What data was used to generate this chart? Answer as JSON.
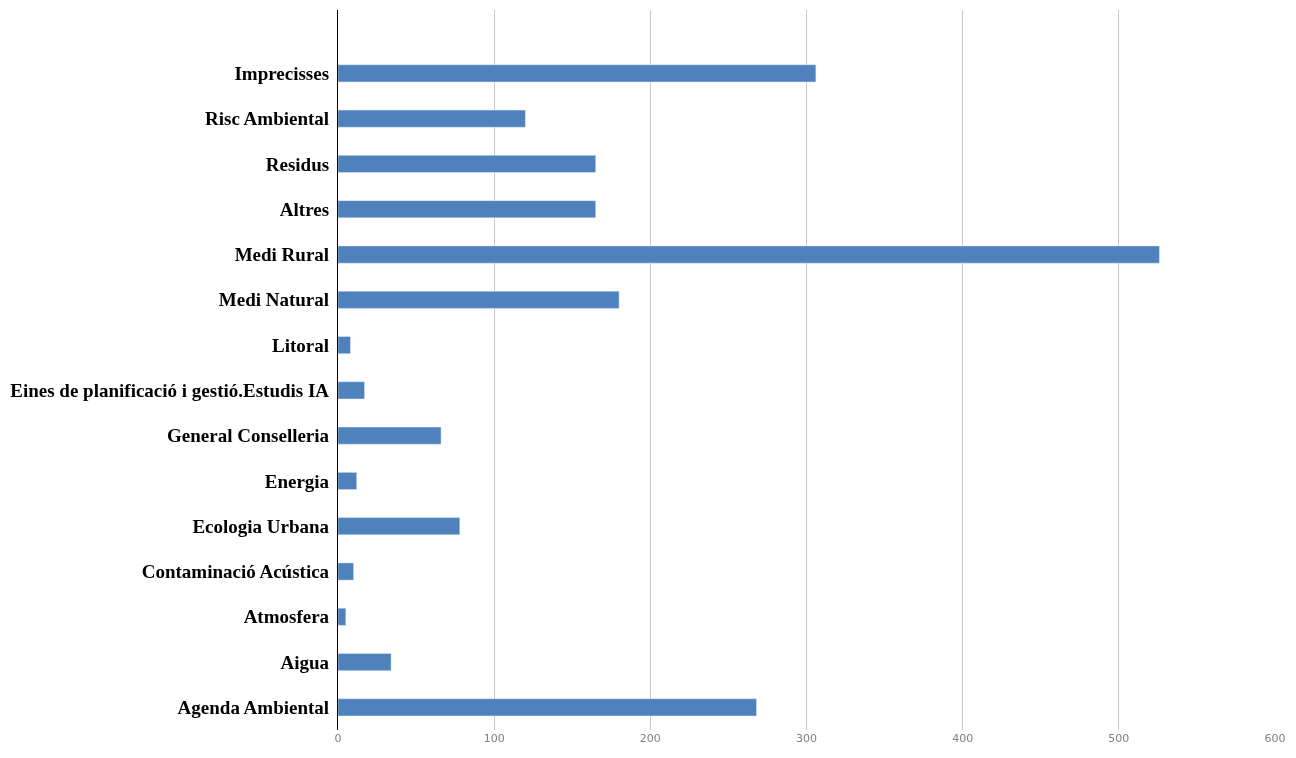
{
  "chart_data": {
    "type": "bar",
    "orientation": "horizontal",
    "categories": [
      "Imprecisses",
      "Risc Ambiental",
      "Residus",
      "Altres",
      "Medi Rural",
      "Medi Natural",
      "Litoral",
      "Eines de planificació i gestió.Estudis IA",
      "General Conselleria",
      "Energia",
      "Ecologia Urbana",
      "Contaminació Acústica",
      "Atmosfera",
      "Aigua",
      "Agenda Ambiental"
    ],
    "values": [
      306,
      120,
      165,
      165,
      526,
      180,
      8,
      17,
      66,
      12,
      78,
      10,
      5,
      34,
      268
    ],
    "color": "#4f81bd",
    "xlim": [
      0,
      600
    ],
    "xticks": [
      0,
      100,
      200,
      300,
      400,
      500,
      600
    ],
    "grid": "x"
  }
}
